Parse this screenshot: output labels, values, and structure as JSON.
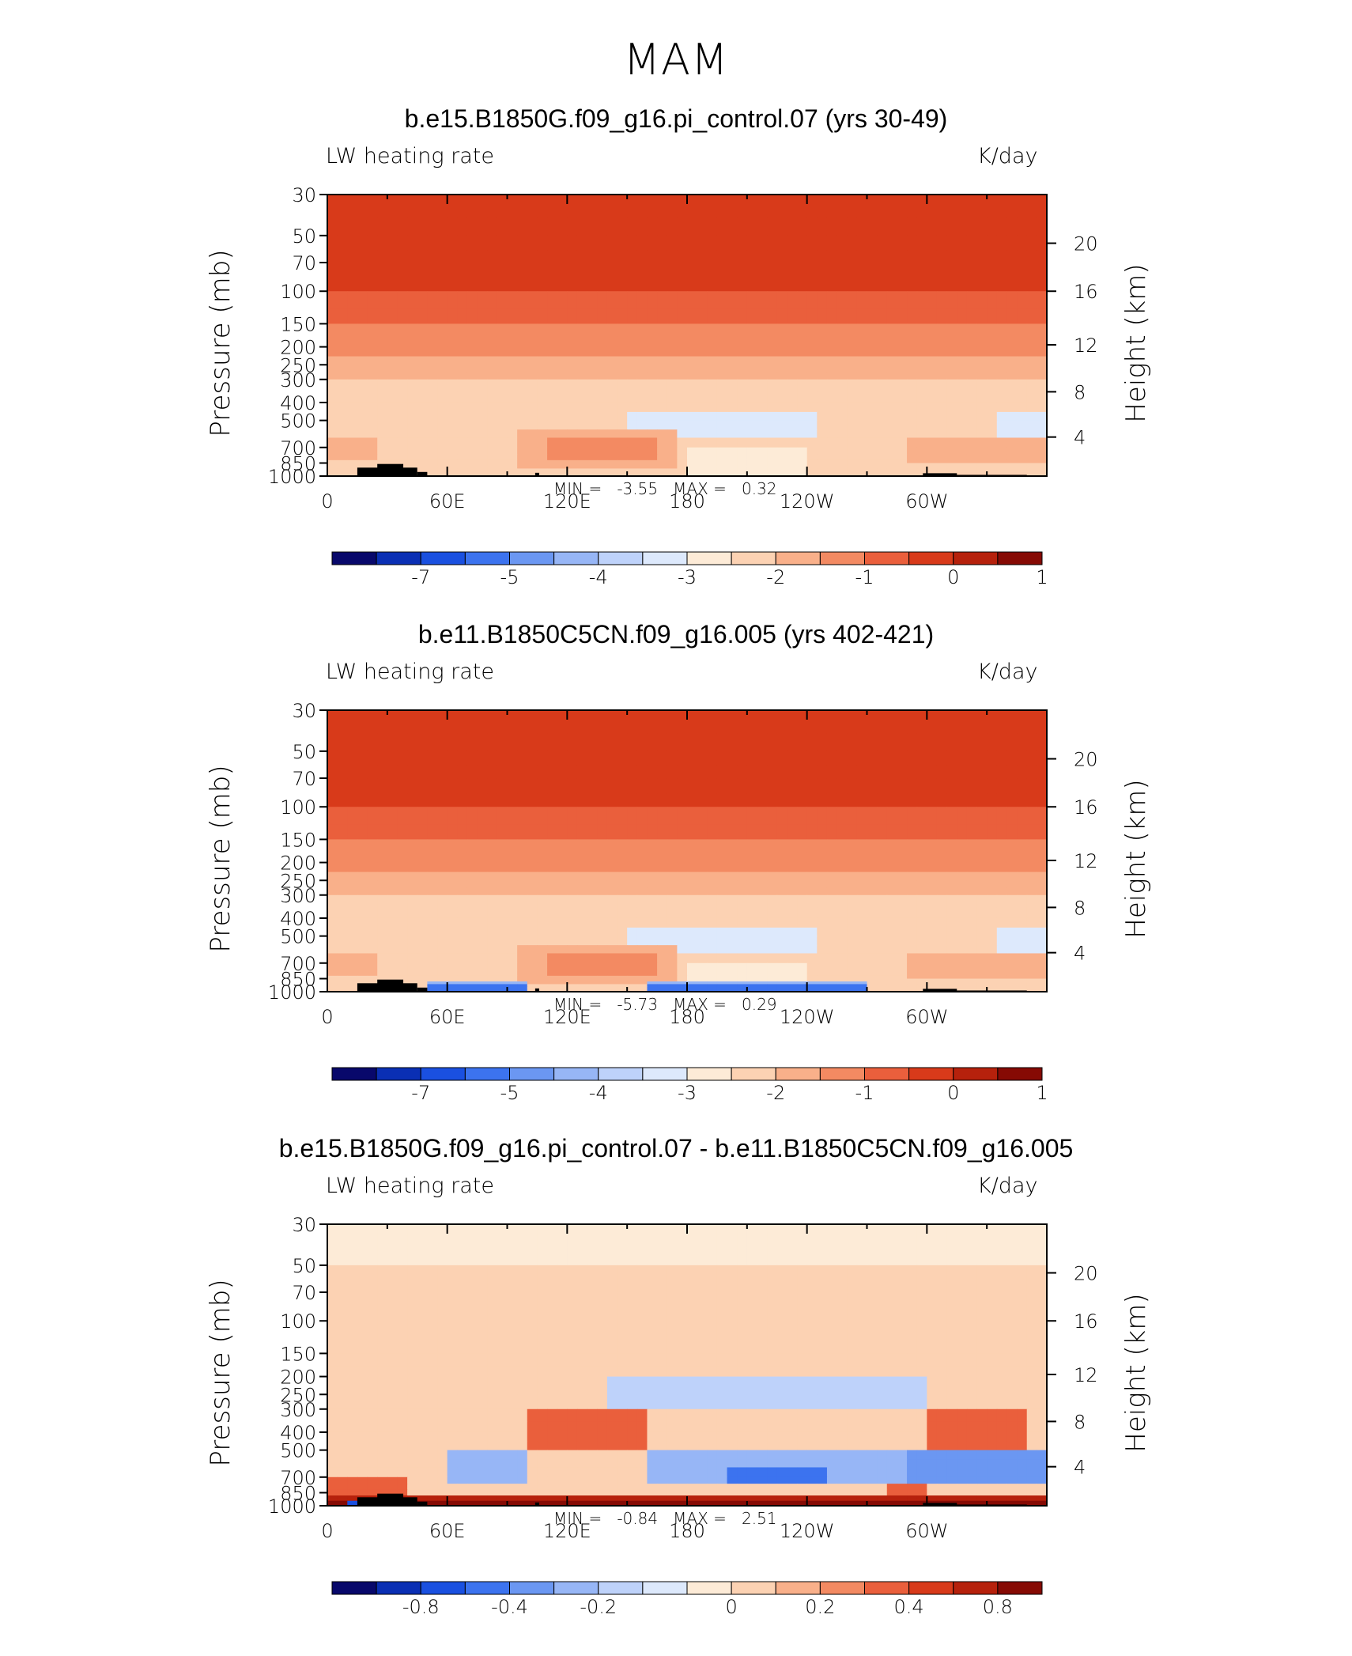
{
  "title": "MAM",
  "colors": {
    "neg": [
      "#08086b",
      "#0a2fb4",
      "#1a50e0",
      "#3c73ef",
      "#6b97f2",
      "#97b6f6",
      "#bed2fa",
      "#dde9fc"
    ],
    "pos": [
      "#fdebd7",
      "#fcd2b3",
      "#f9b08a",
      "#f38a62",
      "#ea5f3c",
      "#d83a1a",
      "#b6210c",
      "#860a04"
    ],
    "terrain": "#000000"
  },
  "chart_data": [
    {
      "type": "heatmap",
      "title": "b.e15.B1850G.f09_g16.pi_control.07 (yrs 30-49)",
      "variable": "LW heating rate",
      "units": "K/day",
      "ylabel": "Pressure (mb)",
      "ylabel_right": "Height (km)",
      "pressure_ticks": [
        "30",
        "50",
        "70",
        "100",
        "150",
        "200",
        "250",
        "300",
        "400",
        "500",
        "700",
        "850",
        "1000"
      ],
      "height_ticks": [
        "20",
        "16",
        "12",
        "8",
        "4"
      ],
      "lon_ticks": [
        "0",
        "60E",
        "120E",
        "180",
        "120W",
        "60W"
      ],
      "min_label": "MIN =",
      "min": "-3.55",
      "max_label": "MAX =",
      "max": "0.32",
      "colorbar_ticks": [
        "-7",
        "-5",
        "-4",
        "-3",
        "-2",
        "-1",
        "0",
        "1"
      ],
      "levels": [
        -7.5,
        -7,
        -6.5,
        -6,
        -5.5,
        -5,
        -4.5,
        -4,
        -3.5,
        -3,
        -2.5,
        -2,
        -1.5,
        -1,
        -0.5,
        0,
        0.5,
        1,
        1.5
      ],
      "grid": false
    },
    {
      "type": "heatmap",
      "title": "b.e11.B1850C5CN.f09_g16.005 (yrs 402-421)",
      "variable": "LW heating rate",
      "units": "K/day",
      "ylabel": "Pressure (mb)",
      "ylabel_right": "Height (km)",
      "pressure_ticks": [
        "30",
        "50",
        "70",
        "100",
        "150",
        "200",
        "250",
        "300",
        "400",
        "500",
        "700",
        "850",
        "1000"
      ],
      "height_ticks": [
        "20",
        "16",
        "12",
        "8",
        "4"
      ],
      "lon_ticks": [
        "0",
        "60E",
        "120E",
        "180",
        "120W",
        "60W"
      ],
      "min_label": "MIN =",
      "min": "-5.73",
      "max_label": "MAX =",
      "max": "0.29",
      "colorbar_ticks": [
        "-7",
        "-5",
        "-4",
        "-3",
        "-2",
        "-1",
        "0",
        "1"
      ],
      "grid": false
    },
    {
      "type": "heatmap",
      "title": "b.e15.B1850G.f09_g16.pi_control.07 - b.e11.B1850C5CN.f09_g16.005",
      "variable": "LW heating rate",
      "units": "K/day",
      "ylabel": "Pressure (mb)",
      "ylabel_right": "Height (km)",
      "pressure_ticks": [
        "30",
        "50",
        "70",
        "100",
        "150",
        "200",
        "250",
        "300",
        "400",
        "500",
        "700",
        "850",
        "1000"
      ],
      "height_ticks": [
        "20",
        "16",
        "12",
        "8",
        "4"
      ],
      "lon_ticks": [
        "0",
        "60E",
        "120E",
        "180",
        "120W",
        "60W"
      ],
      "min_label": "MIN =",
      "min": "-0.84",
      "max_label": "MAX =",
      "max": "2.51",
      "colorbar_ticks": [
        "-0.8",
        "-0.4",
        "-0.2",
        "0",
        "0.2",
        "0.4",
        "0.8"
      ],
      "grid": false
    }
  ]
}
